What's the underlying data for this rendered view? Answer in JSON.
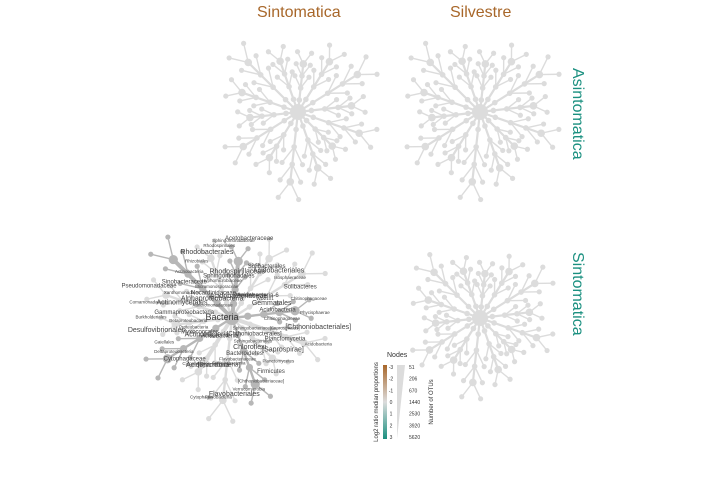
{
  "chart_data": {
    "type": "heat-tree",
    "col_labels": [
      "Sintomatica",
      "Silvestre"
    ],
    "row_labels": [
      "Asintomatica",
      "Sintomatica"
    ],
    "panels": [
      {
        "row": "Asintomatica",
        "col": "Sintomatica",
        "highlighted": false
      },
      {
        "row": "Asintomatica",
        "col": "Silvestre",
        "highlighted": false
      },
      {
        "row": "Sintomatica",
        "col": "Sintomatica",
        "highlighted": true
      },
      {
        "row": "Sintomatica",
        "col": "Silvestre",
        "highlighted": false
      }
    ],
    "root_label": "Bacteria",
    "node_labels": [
      "Acidobacteriaceae",
      "iii1-15",
      "Gemmata",
      "Solibacterales",
      "Gemmataceae",
      "Acidobacteriales",
      "Acidobacteria-6",
      "Isosphaeraceae",
      "WD2101",
      "Solibacteres",
      "Gemmatales",
      "Chitinophagaceae",
      "Acidobacteria",
      "Phycisphaerae",
      "Chitinophagaceae",
      "[Chthoniobacteriales]",
      "[Saprospirales]",
      "Acidobacteria",
      "Planctomycetia",
      "Sphingobacteriaceae",
      "[Saprospirae]",
      "[Chthoniobacterales]",
      "Planctomycetes",
      "Sphingobacteriales",
      "Firmicutes",
      "Chloroflexi",
      "[Chthoniobacteriaceae]",
      "Bacteroidetes",
      "Verrucomicrobia",
      "Flavobacteriaceae",
      "Flavobacteriales",
      "Sphingobacteriia",
      "Flavobacteria",
      "[Spartobacteria]",
      "Cytophagia",
      "Acidimicrobiia",
      "Acidobacteriia",
      "Cytophagales",
      "TM7",
      "Cytophagaceae",
      "Actinobacteria",
      "Deltaproteobacteria",
      "Myxococcales",
      "Gaiellales",
      "Proteobacteria",
      "Desulfovibrionales",
      "Betaproteobacteria",
      "Burkholderiales",
      "Gammaproteobacteria",
      "Comamonadaceae",
      "Actinomycetales",
      "Pseudomonadaceae",
      "Xanthomonadales",
      "Xanthomonadaceae",
      "Sinobacteraceae",
      "Alphaproteobacteria",
      "Actinobacteria",
      "Nocardioidaceae",
      "Rhizobiales",
      "Micromonosporaceae",
      "Rhodobacterales",
      "Hyphomicrobiaceae",
      "Rhodospirillales",
      "Sphingomonadales",
      "Sphingomonadaceae",
      "Rhodospirillaceae",
      "Acetobacteraceae"
    ],
    "legend": {
      "title": "Nodes",
      "color_label": "Log2 ratio median proportions",
      "color_ticks": [
        -3,
        -2,
        -1,
        0,
        1,
        2,
        3
      ],
      "colors": {
        "low": "#a8672a",
        "mid": "#dcdcdc",
        "high": "#1b9080"
      },
      "size_label": "Number of OTUs",
      "size_ticks": [
        51,
        206,
        670,
        1440,
        2530,
        3920,
        5620
      ]
    },
    "colors": {
      "node_neutral": "#dcdcdc",
      "node_dark": "#b7b7b7",
      "col_title": "#a8672a",
      "row_title": "#1b9080"
    }
  }
}
